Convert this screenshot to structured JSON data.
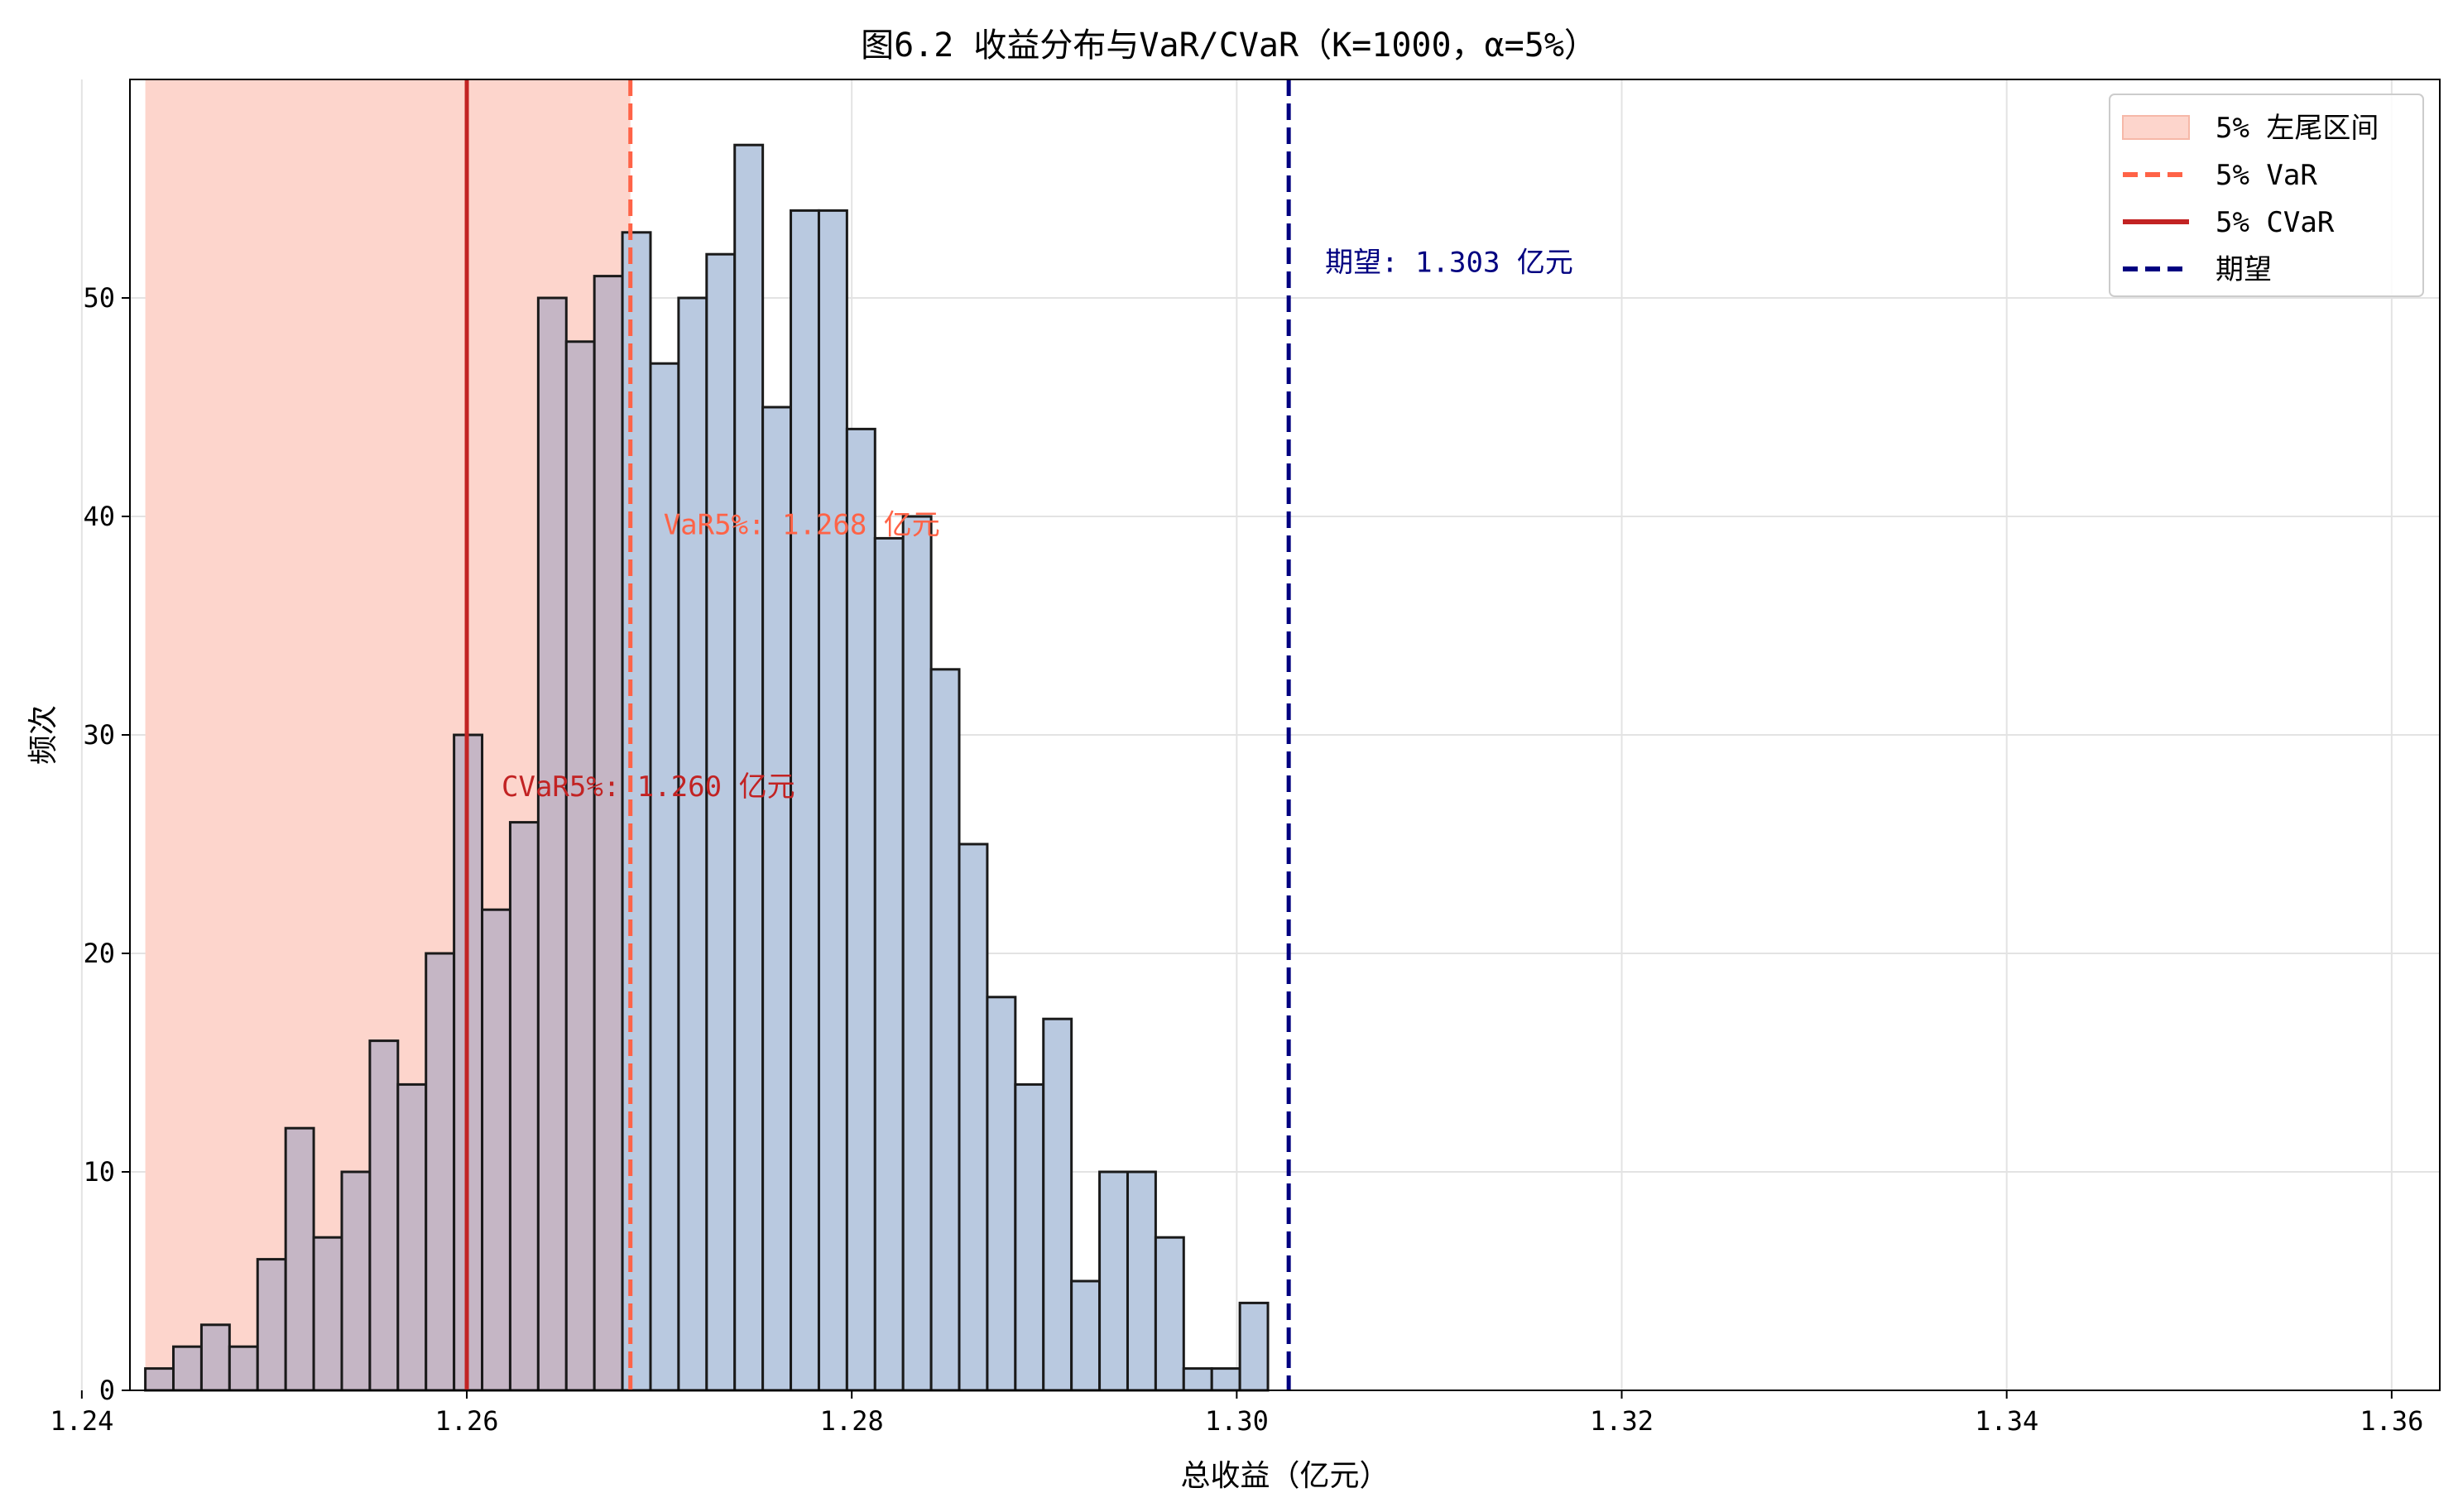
{
  "chart_data": {
    "type": "bar",
    "title": "图6.2 收益分布与VaR/CVaR（K=1000，α=5%）",
    "xlabel": "总收益（亿元）",
    "ylabel": "频次",
    "xlim": [
      1.2425,
      1.3625
    ],
    "ylim": [
      0,
      60
    ],
    "x_ticks": [
      1.24,
      1.26,
      1.28,
      1.3,
      1.32,
      1.34,
      1.36
    ],
    "x_tick_labels": [
      "1.24",
      "1.26",
      "1.28",
      "1.30",
      "1.32",
      "1.34",
      "1.36"
    ],
    "y_ticks": [
      0,
      10,
      20,
      30,
      40,
      50
    ],
    "y_tick_labels": [
      "0",
      "10",
      "20",
      "30",
      "40",
      "50"
    ],
    "grid": true,
    "bins": {
      "start": 1.2433,
      "width": 0.001458,
      "counts": [
        1,
        2,
        3,
        2,
        6,
        12,
        7,
        10,
        16,
        14,
        20,
        30,
        22,
        26,
        50,
        48,
        51,
        53,
        47,
        50,
        52,
        57,
        45,
        54,
        54,
        44,
        39,
        40,
        33,
        25,
        18,
        14,
        17,
        5,
        10,
        10,
        7,
        1,
        1,
        4
      ]
    },
    "tail_region": [
      1.2433,
      1.2685
    ],
    "lines": {
      "var": 1.2685,
      "cvar": 1.26,
      "mean": 1.3027
    },
    "annotations": {
      "var": "VaR5%: 1.268 亿元",
      "cvar": "CVaR5%: 1.260 亿元",
      "mean": "期望: 1.303 亿元"
    },
    "legend": {
      "position": "top-right",
      "items": [
        {
          "label": "5% 左尾区间",
          "kind": "patch",
          "color": "#fdd5cc"
        },
        {
          "label": "5% VaR",
          "kind": "dashed",
          "color": "#ff6347"
        },
        {
          "label": "5% CVaR",
          "kind": "solid",
          "color": "#c22323"
        },
        {
          "label": "期望",
          "kind": "dashed",
          "color": "#000080"
        }
      ]
    },
    "colors": {
      "bar_fill": "#b9c9e0",
      "bar_fill_tail": "#c5b6c5",
      "bar_edge": "#1a1a1a",
      "tail": "#fdd5cc",
      "var": "#ff6347",
      "cvar": "#c22323",
      "mean": "#000080"
    }
  }
}
